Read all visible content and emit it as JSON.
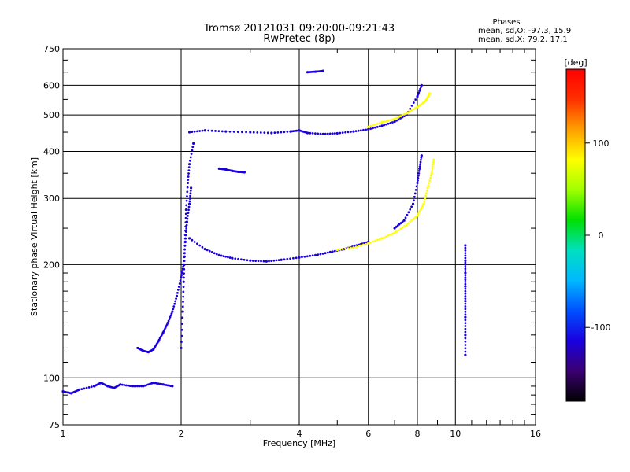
{
  "title": {
    "line1": "Tromsø 20121031 09:20:00-09:21:43",
    "line2": "RwPretec (8p)"
  },
  "stats": {
    "header": "Phases",
    "o_mode": "mean, sd,O: -97.3, 15.9",
    "x_mode": "mean, sd,X:  79.2, 17.1"
  },
  "colorbar": {
    "unit_label": "[deg]",
    "ticks": [
      "100",
      "0",
      "-100"
    ],
    "tick_values": [
      100,
      0,
      -100
    ],
    "range": [
      -180,
      180
    ],
    "colors": [
      "#000000",
      "#3a0070",
      "#1a00e0",
      "#0050ff",
      "#00b8ff",
      "#00e0c0",
      "#00e000",
      "#a0ff00",
      "#ffff00",
      "#ffa000",
      "#ff3000",
      "#ff0000"
    ]
  },
  "chart_data": {
    "type": "scatter",
    "title": "Tromsø 20121031 09:20:00-09:21:43",
    "subtitle": "RwPretec (8p)",
    "xlabel": "Frequency [MHz]",
    "ylabel": "Stationary phase Virtual Height [km]",
    "xscale": "log",
    "yscale": "log",
    "xlim": [
      1,
      16
    ],
    "ylim": [
      75,
      750
    ],
    "x_ticks": [
      1,
      2,
      4,
      6,
      8,
      10,
      16
    ],
    "x_tick_labels": [
      "1",
      "2",
      "4",
      "6",
      "8",
      "10",
      "16"
    ],
    "y_ticks": [
      75,
      100,
      200,
      300,
      400,
      500,
      600,
      750
    ],
    "y_tick_labels": [
      "75",
      "100",
      "200",
      "300",
      "400",
      "500",
      "600",
      "750"
    ],
    "grid": "major only",
    "color_encodes": "phase [deg]",
    "traces": [
      {
        "name": "",
        "phase": -100,
        "points": [
          [
            1.0,
            92
          ],
          [
            1.05,
            91
          ],
          [
            1.1,
            93
          ],
          [
            1.2,
            95
          ],
          [
            1.25,
            97
          ],
          [
            1.3,
            95
          ],
          [
            1.35,
            94
          ],
          [
            1.4,
            96
          ],
          [
            1.5,
            95
          ],
          [
            1.6,
            95
          ],
          [
            1.7,
            97
          ],
          [
            1.8,
            96
          ],
          [
            1.9,
            95
          ]
        ]
      },
      {
        "name": "",
        "phase": -100,
        "points": [
          [
            1.55,
            120
          ],
          [
            1.6,
            118
          ],
          [
            1.65,
            117
          ],
          [
            1.7,
            119
          ],
          [
            1.75,
            125
          ],
          [
            1.8,
            132
          ],
          [
            1.85,
            140
          ],
          [
            1.9,
            150
          ],
          [
            1.95,
            165
          ],
          [
            2.0,
            185
          ],
          [
            2.03,
            200
          ],
          [
            2.05,
            230
          ],
          [
            2.07,
            260
          ],
          [
            2.1,
            290
          ],
          [
            2.12,
            320
          ]
        ]
      },
      {
        "name": "",
        "phase": -100,
        "points": [
          [
            2.0,
            120
          ],
          [
            2.02,
            150
          ],
          [
            2.03,
            180
          ],
          [
            2.04,
            210
          ],
          [
            2.05,
            240
          ],
          [
            2.06,
            280
          ],
          [
            2.08,
            330
          ],
          [
            2.1,
            370
          ],
          [
            2.15,
            420
          ]
        ]
      },
      {
        "name": "",
        "phase": -105,
        "points": [
          [
            2.1,
            235
          ],
          [
            2.3,
            220
          ],
          [
            2.5,
            212
          ],
          [
            2.7,
            208
          ],
          [
            3.0,
            205
          ],
          [
            3.3,
            204
          ],
          [
            3.6,
            206
          ],
          [
            4.0,
            209
          ],
          [
            4.4,
            212
          ],
          [
            4.8,
            216
          ],
          [
            5.2,
            220
          ],
          [
            5.6,
            225
          ],
          [
            6.0,
            230
          ]
        ]
      },
      {
        "name": "",
        "phase": 80,
        "points": [
          [
            5.0,
            219
          ],
          [
            5.5,
            222
          ],
          [
            6.0,
            228
          ],
          [
            6.5,
            235
          ],
          [
            7.0,
            243
          ],
          [
            7.5,
            255
          ],
          [
            8.0,
            270
          ],
          [
            8.3,
            290
          ],
          [
            8.5,
            320
          ],
          [
            8.7,
            350
          ],
          [
            8.8,
            380
          ]
        ]
      },
      {
        "name": "",
        "phase": -100,
        "points": [
          [
            7.0,
            250
          ],
          [
            7.4,
            262
          ],
          [
            7.8,
            290
          ],
          [
            8.0,
            330
          ],
          [
            8.1,
            360
          ],
          [
            8.2,
            390
          ]
        ]
      },
      {
        "name": "",
        "phase": -100,
        "points": [
          [
            2.5,
            360
          ],
          [
            2.6,
            358
          ],
          [
            2.7,
            355
          ],
          [
            2.8,
            353
          ],
          [
            2.9,
            352
          ]
        ]
      },
      {
        "name": "",
        "phase": -100,
        "points": [
          [
            2.1,
            450
          ],
          [
            2.3,
            455
          ],
          [
            2.6,
            452
          ],
          [
            3.0,
            450
          ],
          [
            3.4,
            448
          ],
          [
            3.8,
            452
          ],
          [
            4.0,
            455
          ],
          [
            4.2,
            448
          ],
          [
            4.6,
            445
          ],
          [
            5.0,
            447
          ],
          [
            5.5,
            452
          ],
          [
            6.0,
            458
          ],
          [
            6.5,
            468
          ],
          [
            7.0,
            480
          ],
          [
            7.5,
            500
          ],
          [
            8.0,
            560
          ],
          [
            8.2,
            600
          ]
        ]
      },
      {
        "name": "",
        "phase": 80,
        "points": [
          [
            6.0,
            465
          ],
          [
            6.5,
            478
          ],
          [
            7.0,
            488
          ],
          [
            7.5,
            505
          ],
          [
            8.0,
            525
          ],
          [
            8.4,
            545
          ],
          [
            8.6,
            570
          ]
        ]
      },
      {
        "name": "",
        "phase": -100,
        "points": [
          [
            4.2,
            650
          ],
          [
            4.4,
            652
          ],
          [
            4.6,
            655
          ]
        ]
      },
      {
        "name": "",
        "phase": -100,
        "points": [
          [
            10.6,
            225
          ],
          [
            10.6,
            205
          ],
          [
            10.6,
            190
          ],
          [
            10.6,
            175
          ],
          [
            10.6,
            160
          ],
          [
            10.6,
            145
          ],
          [
            10.6,
            130
          ],
          [
            10.6,
            115
          ]
        ]
      }
    ]
  }
}
